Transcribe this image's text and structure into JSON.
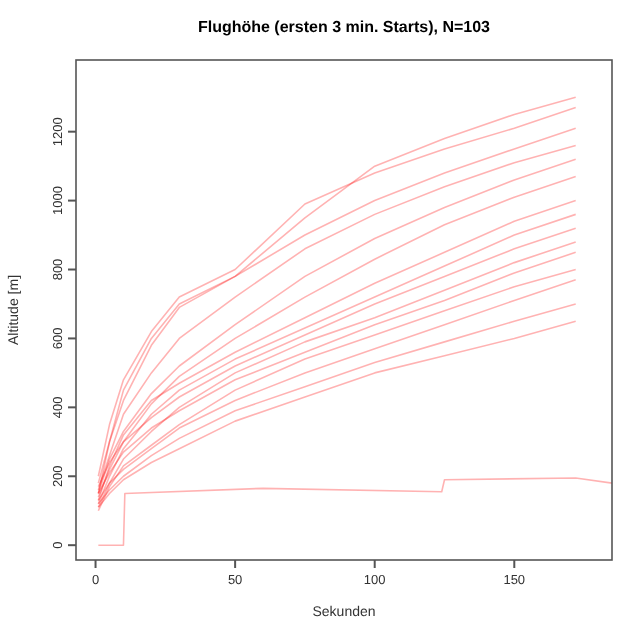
{
  "chart_data": {
    "type": "line",
    "title": "Flughöhe (ersten 3 min. Starts), N=103",
    "xlabel": "Sekunden",
    "ylabel": "Altitude [m]",
    "xlim": [
      -7,
      185
    ],
    "ylim": [
      -43,
      1408
    ],
    "xticks": [
      0,
      50,
      100,
      150
    ],
    "yticks": [
      0,
      200,
      400,
      600,
      800,
      1000,
      1200
    ],
    "grid": false,
    "marker": "none",
    "line_style": "solid",
    "x": [
      1,
      5,
      10,
      20,
      30,
      50,
      75,
      100,
      125,
      150,
      172
    ],
    "series": [
      {
        "color": "#ff0000",
        "values": [
          150,
          300,
          450,
          600,
          700,
          780,
          950,
          1100,
          1180,
          1250,
          1300
        ]
      },
      {
        "color": "#ff0000",
        "values": [
          200,
          350,
          480,
          620,
          720,
          800,
          990,
          1080,
          1150,
          1210,
          1270
        ]
      },
      {
        "color": "#ff0000",
        "values": [
          180,
          300,
          420,
          580,
          690,
          780,
          900,
          1000,
          1080,
          1150,
          1210
        ]
      },
      {
        "color": "#ff0000",
        "values": [
          160,
          260,
          380,
          500,
          600,
          720,
          860,
          960,
          1040,
          1110,
          1160
        ]
      },
      {
        "color": "#ff0000",
        "values": [
          150,
          250,
          330,
          440,
          520,
          640,
          780,
          890,
          980,
          1060,
          1120
        ]
      },
      {
        "color": "#ff0000",
        "values": [
          140,
          220,
          300,
          410,
          490,
          600,
          720,
          830,
          930,
          1010,
          1070
        ]
      },
      {
        "color": "#ff0000",
        "values": [
          130,
          230,
          320,
          420,
          470,
          560,
          660,
          760,
          850,
          940,
          1000
        ]
      },
      {
        "color": "#ff0000",
        "values": [
          120,
          200,
          280,
          380,
          450,
          540,
          630,
          720,
          810,
          900,
          960
        ]
      },
      {
        "color": "#ff0000",
        "values": [
          170,
          240,
          300,
          370,
          430,
          520,
          610,
          700,
          780,
          860,
          920
        ]
      },
      {
        "color": "#ff0000",
        "values": [
          110,
          180,
          250,
          330,
          400,
          500,
          590,
          660,
          740,
          820,
          880
        ]
      },
      {
        "color": "#ff0000",
        "values": [
          150,
          210,
          270,
          340,
          390,
          480,
          560,
          640,
          710,
          790,
          850
        ]
      },
      {
        "color": "#ff0000",
        "values": [
          100,
          170,
          230,
          290,
          350,
          450,
          540,
          610,
          680,
          750,
          800
        ]
      },
      {
        "color": "#ff0000",
        "values": [
          130,
          180,
          220,
          280,
          340,
          420,
          500,
          570,
          640,
          710,
          770
        ]
      },
      {
        "color": "#ff0000",
        "values": [
          120,
          160,
          200,
          260,
          310,
          390,
          460,
          530,
          590,
          650,
          700
        ]
      },
      {
        "color": "#ff0000",
        "values": [
          110,
          150,
          190,
          240,
          280,
          360,
          430,
          500,
          550,
          600,
          650
        ]
      },
      {
        "color": "#ff0000",
        "x": [
          1,
          10,
          10.5,
          60,
          124,
          125,
          172,
          185
        ],
        "values": [
          0,
          0,
          150,
          165,
          155,
          190,
          195,
          180
        ]
      }
    ]
  }
}
